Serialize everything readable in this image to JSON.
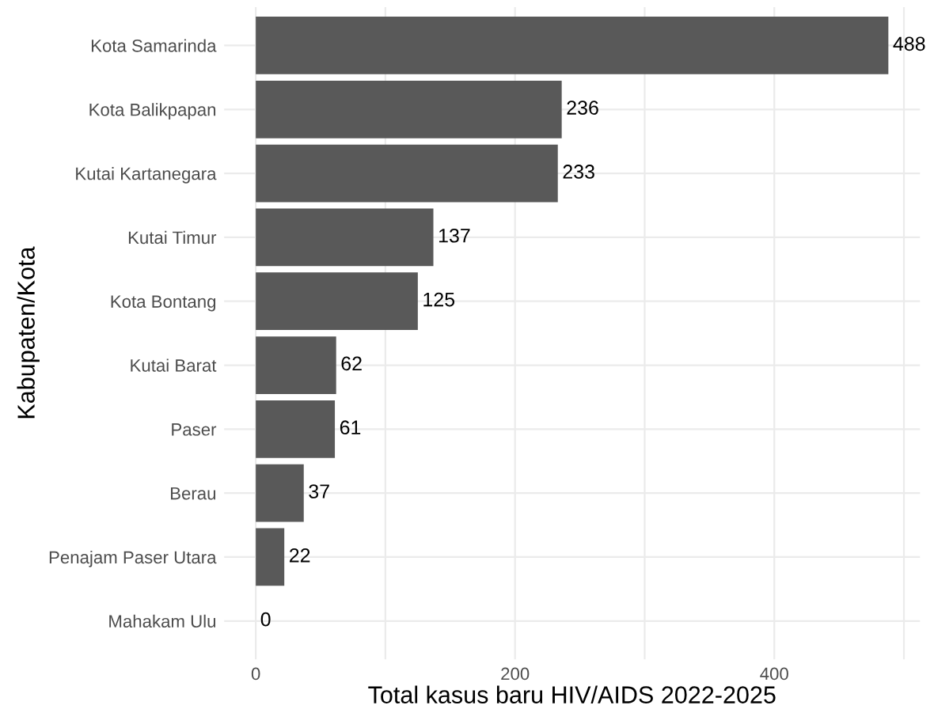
{
  "chart_data": {
    "type": "bar",
    "orientation": "horizontal",
    "xlabel": "Total kasus baru HIV/AIDS 2022-2025",
    "ylabel": "Kabupaten/Kota",
    "categories": [
      "Kota Samarinda",
      "Kota Balikpapan",
      "Kutai Kartanegara",
      "Kutai Timur",
      "Kota Bontang",
      "Kutai Barat",
      "Paser",
      "Berau",
      "Penajam Paser Utara",
      "Mahakam Ulu"
    ],
    "values": [
      488,
      236,
      233,
      137,
      125,
      62,
      61,
      37,
      22,
      0
    ],
    "color": "#595959",
    "data_labels": true,
    "xlim": [
      -24.4,
      512.4
    ],
    "xticks": [
      0,
      {
        "value": 100,
        "label": null
      },
      200,
      {
        "value": 300,
        "label": null
      },
      400,
      {
        "value": 500,
        "label": null
      }
    ],
    "grid": true,
    "legend": false
  }
}
